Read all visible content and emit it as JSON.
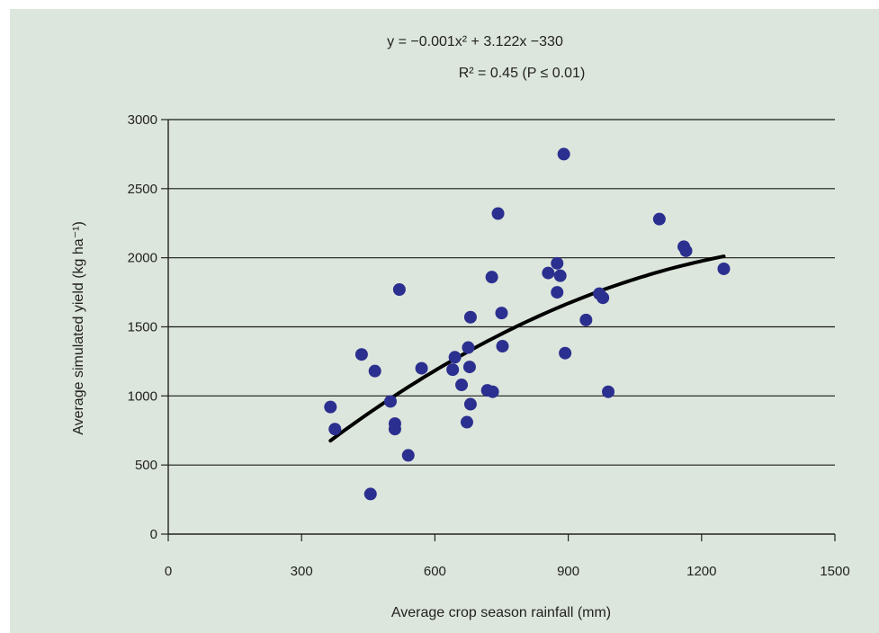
{
  "chart_data": {
    "type": "scatter",
    "equation_line1": "y = −0.001x² + 3.122x −330",
    "equation_line2": "R² = 0.45 (P ≤ 0.01)",
    "xlabel": "Average crop season rainfall (mm)",
    "ylabel": "Average simulated yield (kg ha⁻¹)",
    "xlim": [
      0,
      1500
    ],
    "ylim": [
      0,
      3000
    ],
    "x_ticks": [
      "0",
      "300",
      "600",
      "900",
      "1200",
      "1500"
    ],
    "y_ticks": [
      "0",
      "500",
      "1000",
      "1500",
      "2000",
      "2500",
      "3000"
    ],
    "grid": "horizontal",
    "points": [
      {
        "x": 365,
        "y": 920
      },
      {
        "x": 375,
        "y": 760
      },
      {
        "x": 435,
        "y": 1300
      },
      {
        "x": 455,
        "y": 290
      },
      {
        "x": 465,
        "y": 1180
      },
      {
        "x": 500,
        "y": 960
      },
      {
        "x": 510,
        "y": 800
      },
      {
        "x": 510,
        "y": 760
      },
      {
        "x": 520,
        "y": 1770
      },
      {
        "x": 540,
        "y": 570
      },
      {
        "x": 570,
        "y": 1200
      },
      {
        "x": 640,
        "y": 1190
      },
      {
        "x": 645,
        "y": 1280
      },
      {
        "x": 660,
        "y": 1080
      },
      {
        "x": 672,
        "y": 810
      },
      {
        "x": 675,
        "y": 1350
      },
      {
        "x": 678,
        "y": 1210
      },
      {
        "x": 680,
        "y": 940
      },
      {
        "x": 680,
        "y": 1570
      },
      {
        "x": 718,
        "y": 1040
      },
      {
        "x": 728,
        "y": 1860
      },
      {
        "x": 730,
        "y": 1030
      },
      {
        "x": 742,
        "y": 2320
      },
      {
        "x": 750,
        "y": 1600
      },
      {
        "x": 752,
        "y": 1360
      },
      {
        "x": 855,
        "y": 1890
      },
      {
        "x": 875,
        "y": 1960
      },
      {
        "x": 875,
        "y": 1750
      },
      {
        "x": 882,
        "y": 1870
      },
      {
        "x": 890,
        "y": 2750
      },
      {
        "x": 893,
        "y": 1310
      },
      {
        "x": 940,
        "y": 1550
      },
      {
        "x": 970,
        "y": 1740
      },
      {
        "x": 978,
        "y": 1710
      },
      {
        "x": 990,
        "y": 1030
      },
      {
        "x": 1105,
        "y": 2280
      },
      {
        "x": 1160,
        "y": 2080
      },
      {
        "x": 1165,
        "y": 2050
      },
      {
        "x": 1250,
        "y": 1920
      }
    ],
    "fit": {
      "a": -0.001,
      "b": 3.122,
      "c": -330,
      "x_from": 365,
      "x_to": 1250
    },
    "colors": {
      "background": "#dde6dc",
      "points": "#2b2f8f",
      "fit": "#000000",
      "grid": "#1a1a1a"
    }
  }
}
